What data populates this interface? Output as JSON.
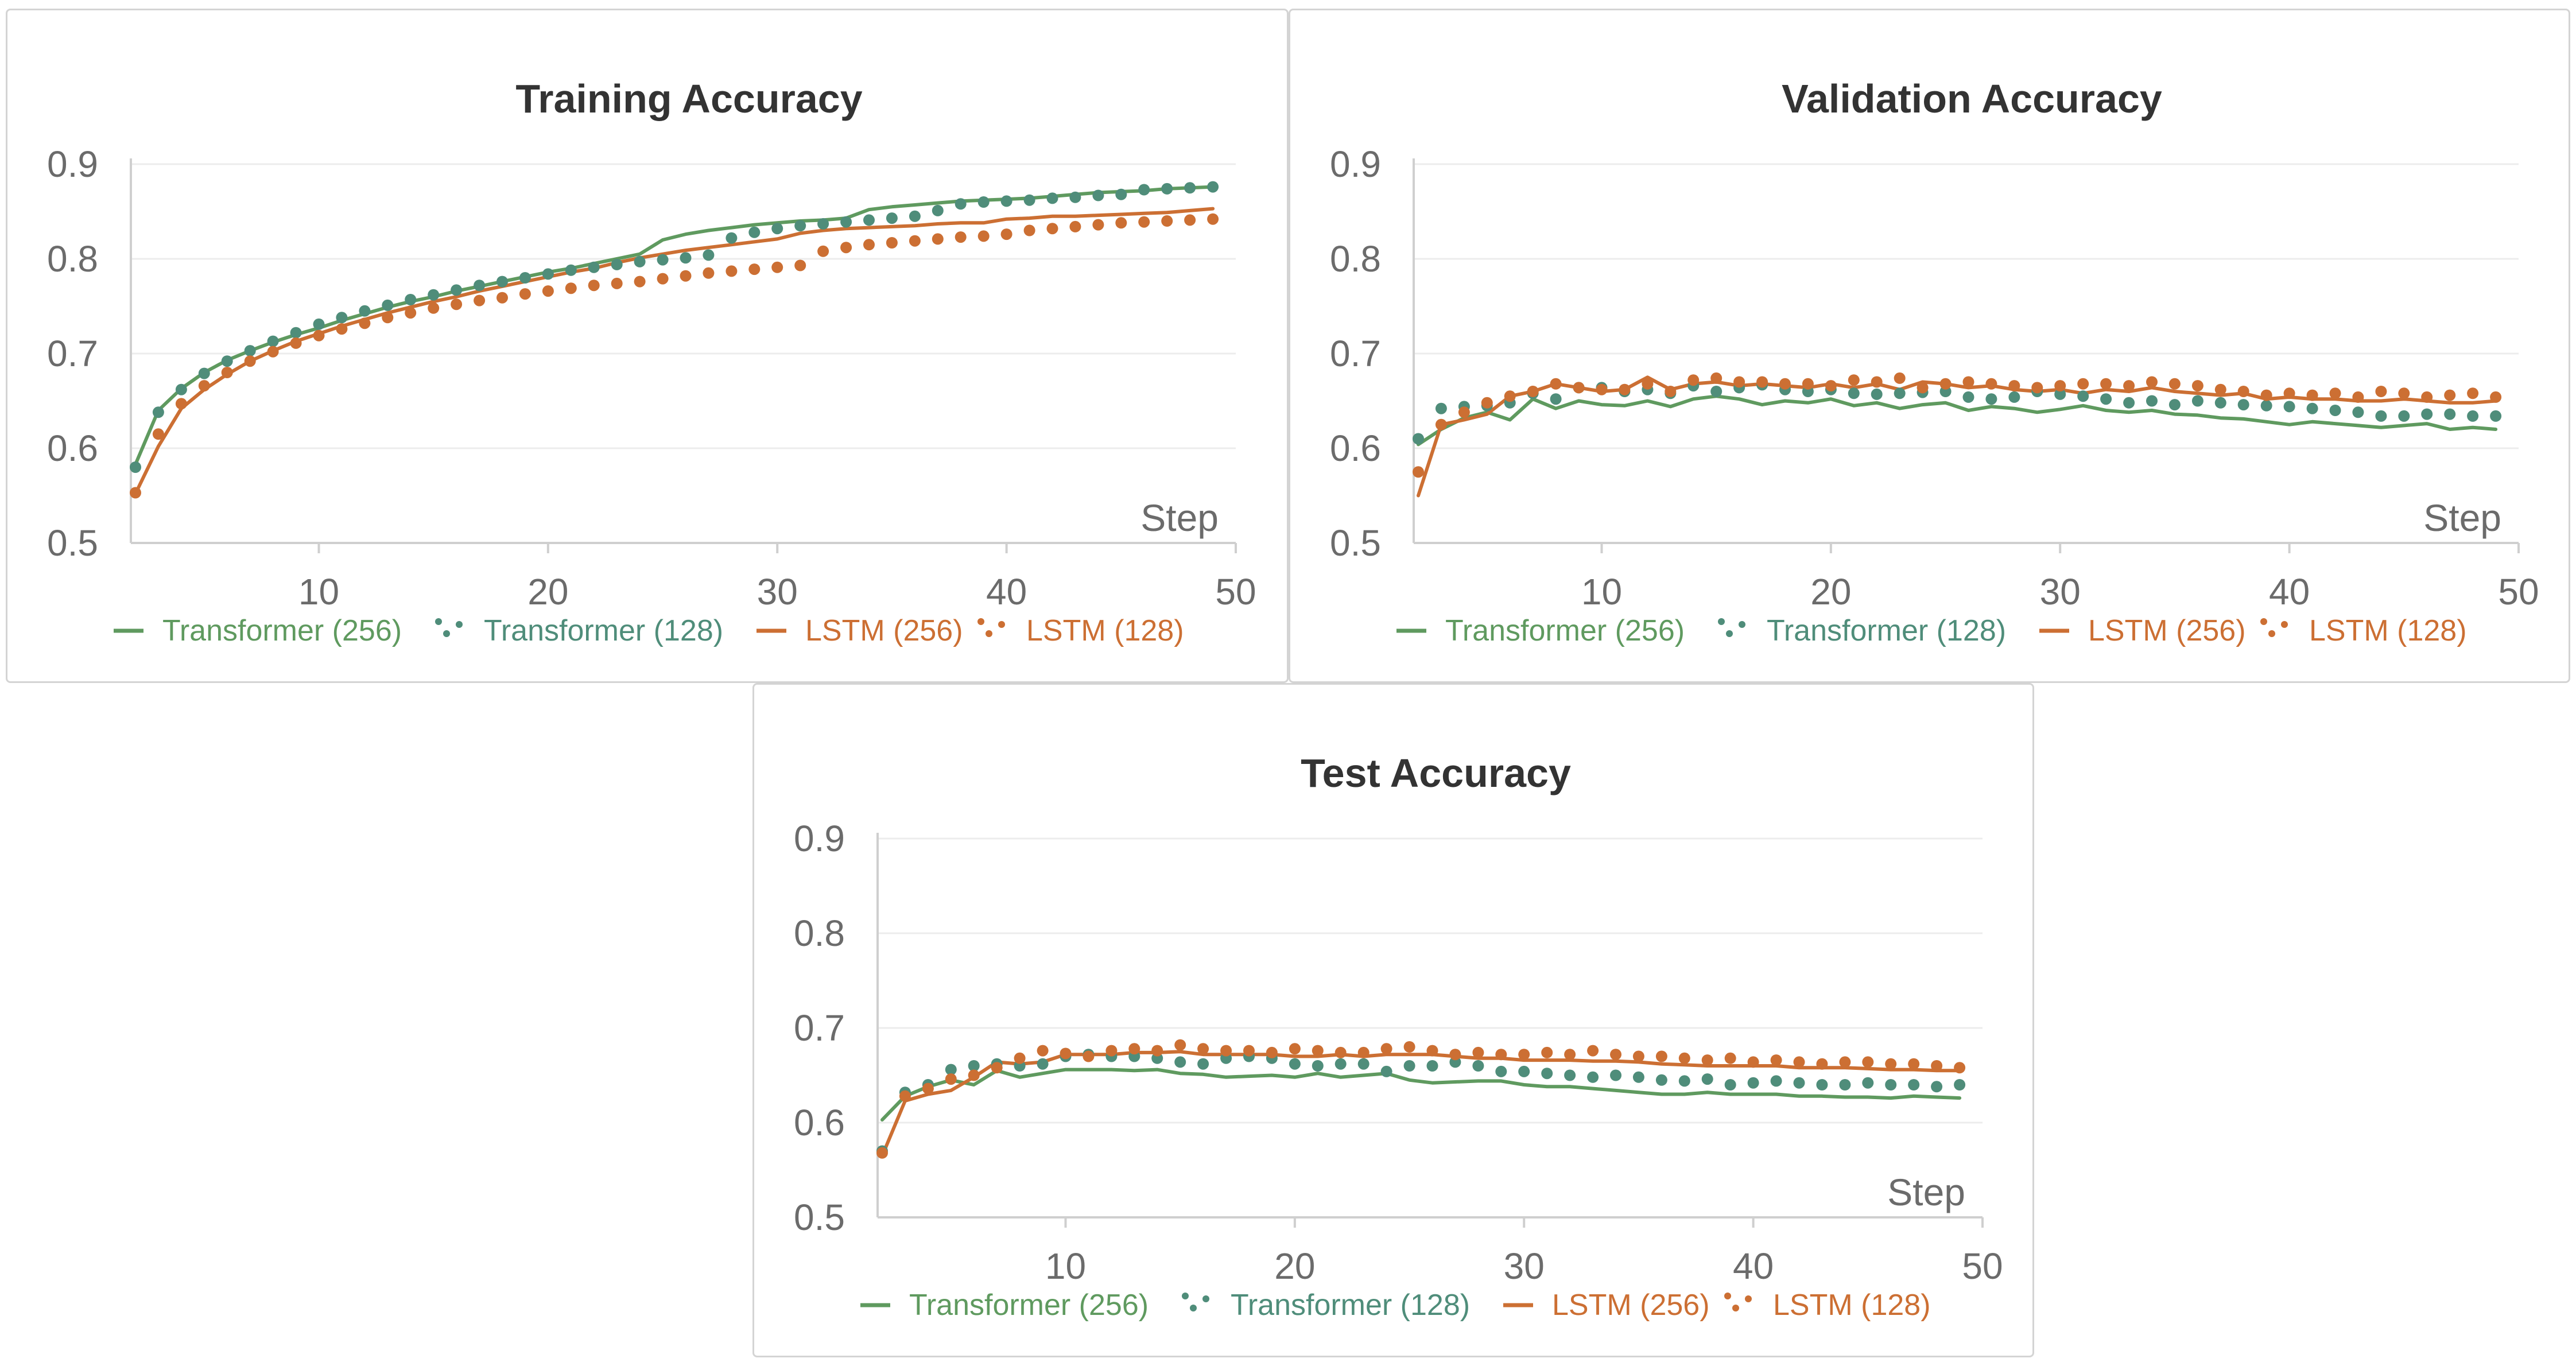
{
  "colors": {
    "transformer_256": "#5f9a5f",
    "transformer_128": "#4f8d7a",
    "lstm_256": "#cc6f33",
    "lstm_128": "#cc6f33",
    "legend_text_green": "#5f9a5f",
    "legend_text_teal": "#4f8d7a",
    "legend_text_orange": "#cc6f33"
  },
  "chart_data": [
    {
      "type": "line",
      "title": "Training Accuracy",
      "xlabel": "Step",
      "ylabel": "",
      "xlim": [
        2,
        49
      ],
      "ylim": [
        0.5,
        0.9
      ],
      "xticks": [
        "10",
        "20",
        "30",
        "40",
        "50"
      ],
      "yticks": [
        "0.5",
        "0.6",
        "0.7",
        "0.8",
        "0.9"
      ],
      "grid": true,
      "legend_position": "bottom",
      "x": [
        2,
        3,
        4,
        5,
        6,
        7,
        8,
        9,
        10,
        11,
        12,
        13,
        14,
        15,
        16,
        17,
        18,
        19,
        20,
        21,
        22,
        23,
        24,
        25,
        26,
        27,
        28,
        29,
        30,
        31,
        32,
        33,
        34,
        35,
        36,
        37,
        38,
        39,
        40,
        41,
        42,
        43,
        44,
        45,
        46,
        47,
        48,
        49
      ],
      "series": [
        {
          "name": "Transformer (256)",
          "style": "line",
          "color": "transformer_256",
          "values": [
            0.583,
            0.64,
            0.663,
            0.68,
            0.693,
            0.703,
            0.712,
            0.72,
            0.727,
            0.735,
            0.742,
            0.749,
            0.755,
            0.76,
            0.766,
            0.771,
            0.776,
            0.781,
            0.786,
            0.79,
            0.795,
            0.8,
            0.805,
            0.82,
            0.826,
            0.83,
            0.833,
            0.836,
            0.838,
            0.84,
            0.841,
            0.843,
            0.852,
            0.855,
            0.857,
            0.859,
            0.861,
            0.862,
            0.863,
            0.864,
            0.866,
            0.868,
            0.87,
            0.871,
            0.872,
            0.874,
            0.875,
            0.876
          ]
        },
        {
          "name": "Transformer (128)",
          "style": "dots",
          "color": "transformer_128",
          "values": [
            0.58,
            0.638,
            0.662,
            0.679,
            0.692,
            0.703,
            0.713,
            0.722,
            0.731,
            0.738,
            0.745,
            0.751,
            0.757,
            0.762,
            0.767,
            0.772,
            0.776,
            0.78,
            0.784,
            0.788,
            0.791,
            0.794,
            0.797,
            0.799,
            0.801,
            0.804,
            0.822,
            0.828,
            0.832,
            0.835,
            0.837,
            0.839,
            0.841,
            0.843,
            0.845,
            0.851,
            0.858,
            0.86,
            0.861,
            0.862,
            0.864,
            0.865,
            0.867,
            0.868,
            0.873,
            0.874,
            0.875,
            0.876
          ]
        },
        {
          "name": "LSTM (256)",
          "style": "line",
          "color": "lstm_256",
          "values": [
            0.552,
            0.602,
            0.642,
            0.662,
            0.678,
            0.692,
            0.703,
            0.713,
            0.721,
            0.729,
            0.736,
            0.743,
            0.749,
            0.755,
            0.76,
            0.766,
            0.771,
            0.776,
            0.781,
            0.786,
            0.79,
            0.796,
            0.801,
            0.805,
            0.809,
            0.812,
            0.815,
            0.818,
            0.821,
            0.827,
            0.83,
            0.832,
            0.833,
            0.834,
            0.835,
            0.837,
            0.838,
            0.838,
            0.842,
            0.843,
            0.845,
            0.845,
            0.846,
            0.847,
            0.848,
            0.849,
            0.851,
            0.853
          ]
        },
        {
          "name": "LSTM (128)",
          "style": "dots",
          "color": "lstm_128",
          "values": [
            0.553,
            0.615,
            0.647,
            0.666,
            0.68,
            0.692,
            0.702,
            0.711,
            0.719,
            0.726,
            0.732,
            0.738,
            0.743,
            0.748,
            0.752,
            0.756,
            0.759,
            0.763,
            0.766,
            0.769,
            0.772,
            0.774,
            0.776,
            0.779,
            0.782,
            0.785,
            0.787,
            0.789,
            0.791,
            0.793,
            0.808,
            0.812,
            0.815,
            0.817,
            0.819,
            0.821,
            0.823,
            0.824,
            0.826,
            0.83,
            0.832,
            0.834,
            0.836,
            0.838,
            0.839,
            0.84,
            0.841,
            0.842
          ]
        }
      ]
    },
    {
      "type": "line",
      "title": "Validation Accuracy",
      "xlabel": "Step",
      "ylabel": "",
      "xlim": [
        2,
        49
      ],
      "ylim": [
        0.5,
        0.9
      ],
      "xticks": [
        "10",
        "20",
        "30",
        "40",
        "50"
      ],
      "yticks": [
        "0.5",
        "0.6",
        "0.7",
        "0.8",
        "0.9"
      ],
      "grid": true,
      "legend_position": "bottom",
      "x": [
        2,
        3,
        4,
        5,
        6,
        7,
        8,
        9,
        10,
        11,
        12,
        13,
        14,
        15,
        16,
        17,
        18,
        19,
        20,
        21,
        22,
        23,
        24,
        25,
        26,
        27,
        28,
        29,
        30,
        31,
        32,
        33,
        34,
        35,
        36,
        37,
        38,
        39,
        40,
        41,
        42,
        43,
        44,
        45,
        46,
        47,
        48,
        49
      ],
      "series": [
        {
          "name": "Transformer (256)",
          "style": "line",
          "color": "transformer_256",
          "values": [
            0.604,
            0.62,
            0.632,
            0.638,
            0.63,
            0.652,
            0.642,
            0.65,
            0.646,
            0.645,
            0.65,
            0.644,
            0.652,
            0.655,
            0.652,
            0.646,
            0.65,
            0.648,
            0.652,
            0.645,
            0.648,
            0.642,
            0.646,
            0.648,
            0.64,
            0.644,
            0.642,
            0.638,
            0.641,
            0.645,
            0.64,
            0.638,
            0.64,
            0.636,
            0.635,
            0.632,
            0.631,
            0.628,
            0.625,
            0.628,
            0.626,
            0.624,
            0.622,
            0.624,
            0.626,
            0.62,
            0.622,
            0.62
          ]
        },
        {
          "name": "Transformer (128)",
          "style": "dots",
          "color": "transformer_128",
          "values": [
            0.61,
            0.642,
            0.644,
            0.645,
            0.648,
            0.658,
            0.652,
            0.664,
            0.664,
            0.66,
            0.662,
            0.658,
            0.666,
            0.66,
            0.664,
            0.667,
            0.662,
            0.66,
            0.662,
            0.658,
            0.657,
            0.658,
            0.659,
            0.66,
            0.654,
            0.652,
            0.654,
            0.66,
            0.657,
            0.655,
            0.652,
            0.648,
            0.65,
            0.646,
            0.65,
            0.648,
            0.646,
            0.645,
            0.644,
            0.642,
            0.64,
            0.638,
            0.634,
            0.634,
            0.636,
            0.636,
            0.634,
            0.634
          ]
        },
        {
          "name": "LSTM (256)",
          "style": "line",
          "color": "lstm_256",
          "values": [
            0.55,
            0.625,
            0.63,
            0.636,
            0.655,
            0.66,
            0.668,
            0.664,
            0.66,
            0.662,
            0.675,
            0.662,
            0.668,
            0.67,
            0.666,
            0.668,
            0.666,
            0.664,
            0.668,
            0.664,
            0.668,
            0.662,
            0.67,
            0.668,
            0.664,
            0.666,
            0.662,
            0.66,
            0.662,
            0.658,
            0.662,
            0.66,
            0.664,
            0.66,
            0.658,
            0.656,
            0.658,
            0.652,
            0.654,
            0.652,
            0.652,
            0.65,
            0.65,
            0.652,
            0.65,
            0.648,
            0.648,
            0.65
          ]
        },
        {
          "name": "LSTM (128)",
          "style": "dots",
          "color": "lstm_128",
          "values": [
            0.575,
            0.625,
            0.638,
            0.648,
            0.655,
            0.66,
            0.668,
            0.664,
            0.662,
            0.662,
            0.668,
            0.66,
            0.672,
            0.674,
            0.67,
            0.67,
            0.668,
            0.668,
            0.666,
            0.672,
            0.67,
            0.674,
            0.664,
            0.668,
            0.67,
            0.668,
            0.666,
            0.664,
            0.666,
            0.668,
            0.668,
            0.666,
            0.67,
            0.668,
            0.666,
            0.662,
            0.66,
            0.656,
            0.658,
            0.656,
            0.658,
            0.654,
            0.66,
            0.658,
            0.654,
            0.656,
            0.658,
            0.654
          ]
        }
      ]
    },
    {
      "type": "line",
      "title": "Test Accuracy",
      "xlabel": "Step",
      "ylabel": "",
      "xlim": [
        2,
        49
      ],
      "ylim": [
        0.5,
        0.9
      ],
      "xticks": [
        "10",
        "20",
        "30",
        "40",
        "50"
      ],
      "yticks": [
        "0.5",
        "0.6",
        "0.7",
        "0.8",
        "0.9"
      ],
      "grid": true,
      "legend_position": "bottom",
      "x": [
        2,
        3,
        4,
        5,
        6,
        7,
        8,
        9,
        10,
        11,
        12,
        13,
        14,
        15,
        16,
        17,
        18,
        19,
        20,
        21,
        22,
        23,
        24,
        25,
        26,
        27,
        28,
        29,
        30,
        31,
        32,
        33,
        34,
        35,
        36,
        37,
        38,
        39,
        40,
        41,
        42,
        43,
        44,
        45,
        46,
        47,
        48,
        49
      ],
      "series": [
        {
          "name": "Transformer (256)",
          "style": "line",
          "color": "transformer_256",
          "values": [
            0.603,
            0.628,
            0.638,
            0.645,
            0.64,
            0.655,
            0.648,
            0.652,
            0.656,
            0.656,
            0.656,
            0.655,
            0.656,
            0.652,
            0.651,
            0.648,
            0.649,
            0.65,
            0.648,
            0.652,
            0.648,
            0.65,
            0.652,
            0.645,
            0.642,
            0.643,
            0.644,
            0.644,
            0.64,
            0.638,
            0.638,
            0.636,
            0.634,
            0.632,
            0.63,
            0.63,
            0.632,
            0.63,
            0.63,
            0.63,
            0.628,
            0.628,
            0.627,
            0.627,
            0.626,
            0.628,
            0.627,
            0.626
          ]
        },
        {
          "name": "Transformer (128)",
          "style": "dots",
          "color": "transformer_128",
          "values": [
            0.57,
            0.632,
            0.64,
            0.656,
            0.66,
            0.662,
            0.66,
            0.662,
            0.67,
            0.672,
            0.67,
            0.67,
            0.668,
            0.664,
            0.662,
            0.668,
            0.67,
            0.668,
            0.662,
            0.66,
            0.662,
            0.662,
            0.654,
            0.66,
            0.66,
            0.664,
            0.66,
            0.654,
            0.654,
            0.652,
            0.65,
            0.648,
            0.65,
            0.648,
            0.645,
            0.644,
            0.646,
            0.64,
            0.642,
            0.644,
            0.642,
            0.64,
            0.64,
            0.642,
            0.64,
            0.64,
            0.638,
            0.64
          ]
        },
        {
          "name": "LSTM (256)",
          "style": "line",
          "color": "lstm_256",
          "values": [
            0.565,
            0.623,
            0.63,
            0.634,
            0.648,
            0.664,
            0.662,
            0.664,
            0.672,
            0.672,
            0.672,
            0.674,
            0.674,
            0.675,
            0.672,
            0.672,
            0.672,
            0.672,
            0.67,
            0.67,
            0.672,
            0.67,
            0.672,
            0.672,
            0.672,
            0.67,
            0.668,
            0.668,
            0.666,
            0.666,
            0.666,
            0.665,
            0.665,
            0.664,
            0.662,
            0.661,
            0.66,
            0.66,
            0.66,
            0.66,
            0.658,
            0.658,
            0.658,
            0.657,
            0.656,
            0.656,
            0.655,
            0.655
          ]
        },
        {
          "name": "LSTM (128)",
          "style": "dots",
          "color": "lstm_128",
          "values": [
            0.568,
            0.628,
            0.636,
            0.646,
            0.65,
            0.658,
            0.668,
            0.676,
            0.673,
            0.67,
            0.676,
            0.678,
            0.676,
            0.682,
            0.678,
            0.676,
            0.676,
            0.674,
            0.678,
            0.676,
            0.674,
            0.674,
            0.678,
            0.68,
            0.676,
            0.672,
            0.674,
            0.672,
            0.672,
            0.674,
            0.672,
            0.676,
            0.672,
            0.67,
            0.67,
            0.668,
            0.666,
            0.668,
            0.664,
            0.666,
            0.664,
            0.662,
            0.664,
            0.664,
            0.662,
            0.662,
            0.66,
            0.658
          ]
        }
      ]
    }
  ]
}
